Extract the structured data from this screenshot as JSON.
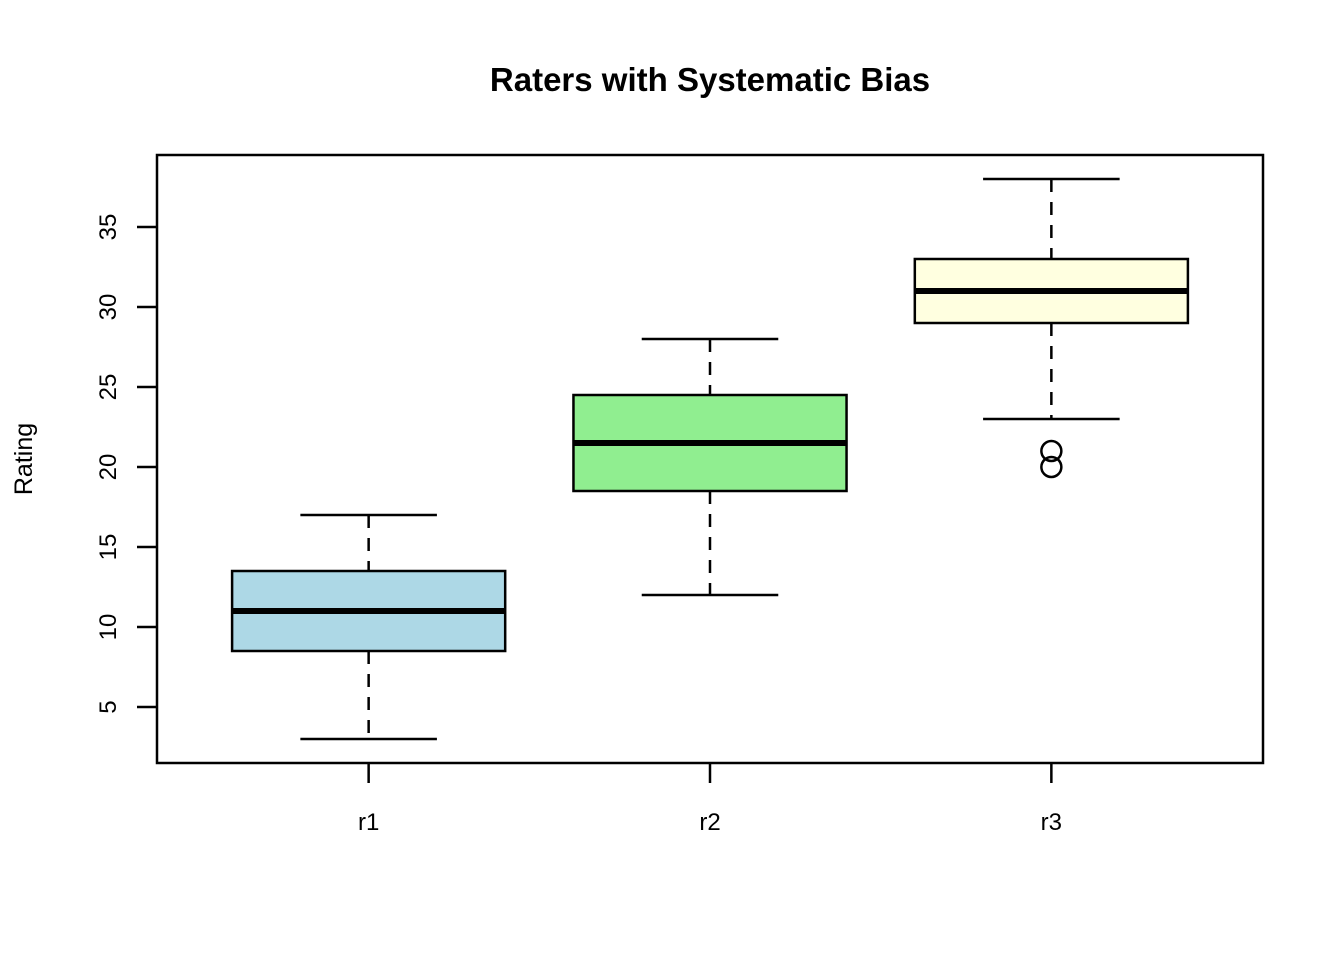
{
  "chart_data": {
    "type": "boxplot",
    "title": "Raters with Systematic Bias",
    "xlabel": "",
    "ylabel": "Rating",
    "categories": [
      "r1",
      "r2",
      "r3"
    ],
    "ylim": [
      1.5,
      39.5
    ],
    "y_ticks": [
      5,
      10,
      15,
      20,
      25,
      30,
      35
    ],
    "grid": false,
    "legend": "none",
    "series": [
      {
        "name": "r1",
        "whisker_low": 3,
        "q1": 8.5,
        "median": 11,
        "q3": 13.5,
        "whisker_high": 17,
        "outliers": [],
        "fill": "#ADD8E6"
      },
      {
        "name": "r2",
        "whisker_low": 12,
        "q1": 18.5,
        "median": 21.5,
        "q3": 24.5,
        "whisker_high": 28,
        "outliers": [],
        "fill": "#90EE90"
      },
      {
        "name": "r3",
        "whisker_low": 23,
        "q1": 29,
        "median": 31,
        "q3": 33,
        "whisker_high": 38,
        "outliers": [
          21,
          20
        ],
        "fill": "#FFFFE0"
      }
    ],
    "colors": {
      "stroke": "#000000",
      "background": "#FFFFFF"
    }
  }
}
